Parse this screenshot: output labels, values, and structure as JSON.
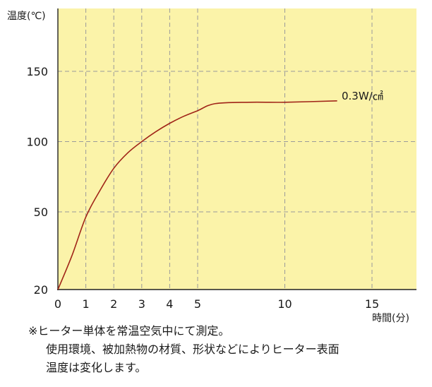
{
  "chart_data": {
    "type": "line",
    "ylabel": "温度(℃)",
    "xlabel": "時間(分)",
    "x_ticks": [
      0,
      1,
      2,
      3,
      4,
      5,
      10,
      15
    ],
    "y_ticks": [
      20,
      50,
      100,
      150
    ],
    "xlim": [
      0,
      18
    ],
    "ylim": [
      20,
      190
    ],
    "grid": true,
    "background_color": "#fbf3a9",
    "line_color": "#a02418",
    "series": [
      {
        "name": "0.3W/㎠",
        "x": [
          0,
          0.5,
          1,
          1.5,
          2,
          2.5,
          3,
          3.5,
          4,
          4.5,
          5,
          6,
          8,
          10,
          13
        ],
        "y": [
          20,
          33,
          48,
          65,
          81,
          92,
          100,
          107,
          113,
          118,
          122,
          127,
          128,
          128,
          129
        ]
      }
    ]
  },
  "notes": [
    "※ヒーター単体を常温空気中にて測定。",
    "使用環境、被加熱物の材質、形状などによりヒーター表面",
    "温度は変化します。"
  ]
}
